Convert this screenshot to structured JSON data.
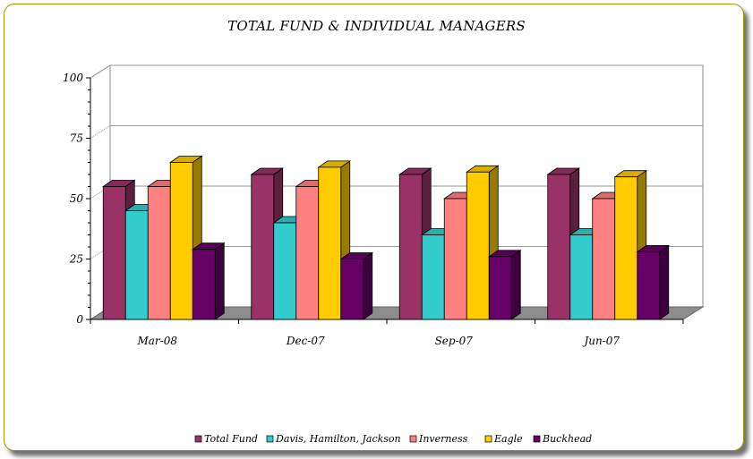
{
  "chart_data": {
    "type": "bar",
    "title": "TOTAL FUND & INDIVIDUAL MANAGERS",
    "categories": [
      "Mar-08",
      "Dec-07",
      "Sep-07",
      "Jun-07"
    ],
    "series": [
      {
        "name": "Total Fund",
        "values": [
          55,
          60,
          60,
          60
        ],
        "color": "#993366"
      },
      {
        "name": "Davis, Hamilton, Jackson",
        "values": [
          45,
          40,
          35,
          35
        ],
        "color": "#33CCCC"
      },
      {
        "name": "Inverness",
        "values": [
          55,
          55,
          50,
          50
        ],
        "color": "#FF8080"
      },
      {
        "name": "Eagle",
        "values": [
          65,
          63,
          61,
          59
        ],
        "color": "#FFCC00"
      },
      {
        "name": "Buckhead",
        "values": [
          29,
          25,
          26,
          28
        ],
        "color": "#660066"
      }
    ],
    "yticks": [
      "0",
      "25",
      "50",
      "75",
      "100"
    ],
    "ylim": [
      0,
      100
    ],
    "grid": true,
    "legend_position": "bottom"
  }
}
